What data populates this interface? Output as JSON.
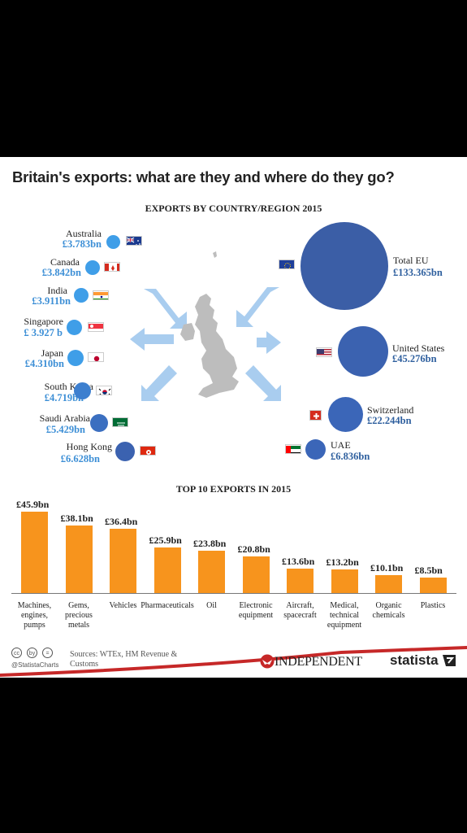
{
  "title": "Britain's exports: what are they and where do they go?",
  "map_section_title": "EXPORTS BY COUNTRY/REGION 2015",
  "bar_section_title": "TOP 10 EXPORTS IN 2015",
  "colors": {
    "orange": "#f7941d",
    "light_blue": "#3f9ee8",
    "dark_blue": "#3b5ea6",
    "arrow": "#a9cdef",
    "map": "#bdbdbd",
    "red_accent": "#c62828"
  },
  "left_countries": [
    {
      "name": "Australia",
      "value": "£3.783bn",
      "flag": "australia-flag"
    },
    {
      "name": "Canada",
      "value": "£3.842bn",
      "flag": "canada-flag"
    },
    {
      "name": "India",
      "value": "£3.911bn",
      "flag": "india-flag"
    },
    {
      "name": "Singapore",
      "value": "£ 3.927 b",
      "flag": "singapore-flag"
    },
    {
      "name": "Japan",
      "value": "£4.310bn",
      "flag": "japan-flag"
    },
    {
      "name": "South Korea",
      "value": "£4.719bn",
      "flag": "south-korea-flag"
    },
    {
      "name": "Saudi Arabia",
      "value": "£5.429bn",
      "flag": "saudi-arabia-flag"
    },
    {
      "name": "Hong Kong",
      "value": "£6.628bn",
      "flag": "hong-kong-flag"
    }
  ],
  "right_countries": [
    {
      "name": "Total EU",
      "value": "£133.365bn",
      "flag": "eu-flag"
    },
    {
      "name": "United States",
      "value": "£45.276bn",
      "flag": "usa-flag"
    },
    {
      "name": "Switzerland",
      "value": "£22.244bn",
      "flag": "switzerland-flag"
    },
    {
      "name": "UAE",
      "value": "£6.836bn",
      "flag": "uae-flag"
    }
  ],
  "chart_data": {
    "type": "bar",
    "title": "TOP 10 EXPORTS IN 2015",
    "categories": [
      "Machines,\nengines,\npumps",
      "Gems,\nprecious\nmetals",
      "Vehicles",
      "Pharmaceuticals",
      "Oil",
      "Electronic\nequipment",
      "Aircraft,\nspacecraft",
      "Medical,\ntechnical\nequipment",
      "Organic\nchemicals",
      "Plastics"
    ],
    "values": [
      45.9,
      38.1,
      36.4,
      25.9,
      23.8,
      20.8,
      13.6,
      13.2,
      10.1,
      8.5
    ],
    "value_labels": [
      "£45.9bn",
      "£38.1bn",
      "£36.4bn",
      "£25.9bn",
      "£23.8bn",
      "£20.8bn",
      "£13.6bn",
      "£13.2bn",
      "£10.1bn",
      "£8.5bn"
    ],
    "ylim": [
      0,
      45.9
    ],
    "grid": false,
    "bar_color": "#f7941d"
  },
  "footer": {
    "sources": "Sources: WTEx, HM Revenue & Customs",
    "handle": "@StatistaCharts",
    "cc_icons": [
      "cc",
      "by",
      "="
    ],
    "independent": "INDEPENDENT",
    "statista": "statista"
  }
}
